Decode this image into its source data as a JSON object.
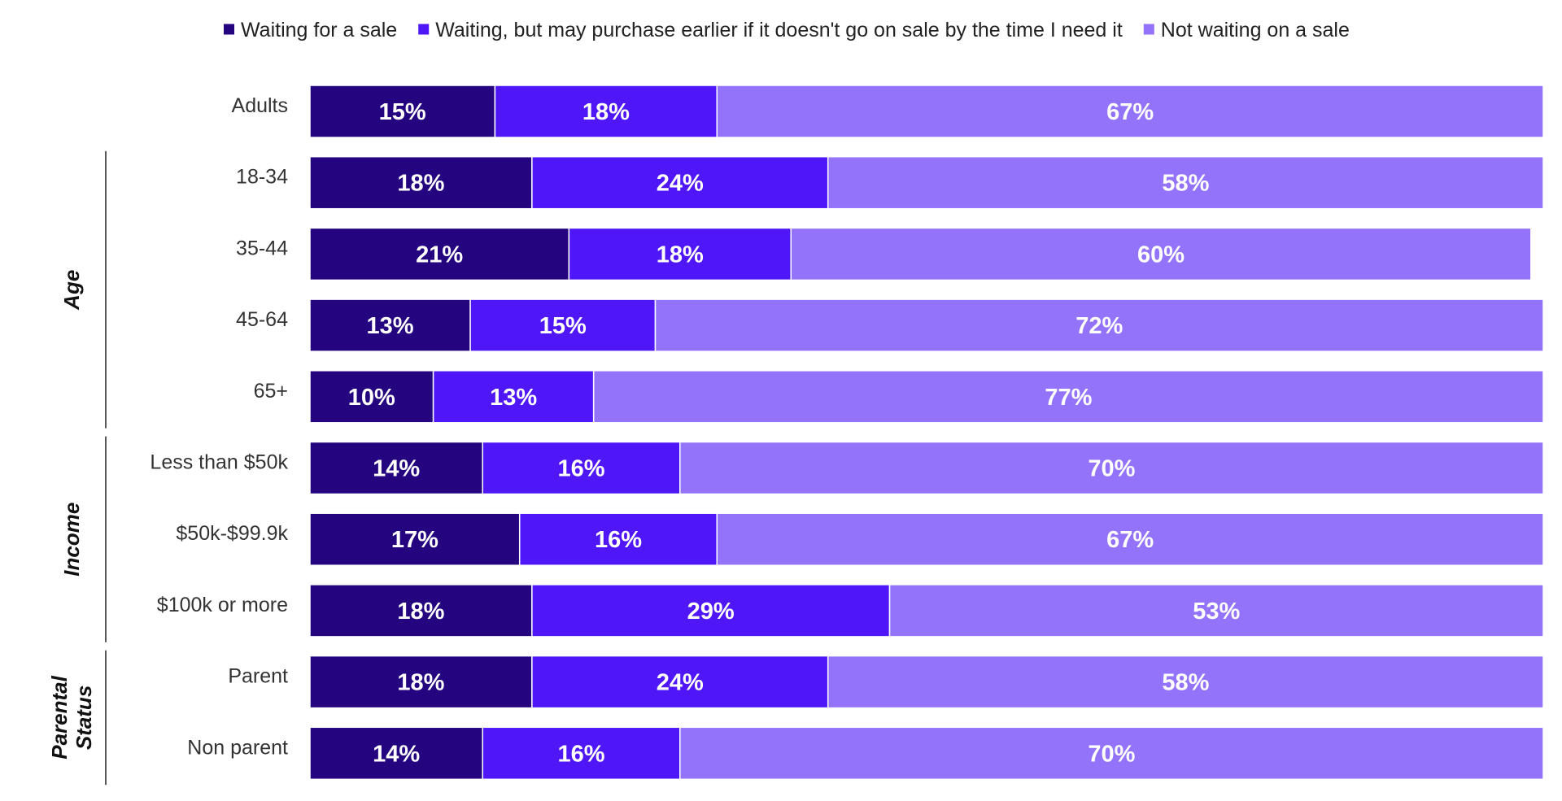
{
  "chart_data": {
    "type": "bar",
    "orientation": "horizontal",
    "stacked": true,
    "legend_position": "top",
    "grid": false,
    "xlim": [
      0,
      100
    ],
    "value_suffix": "%",
    "categories": [
      "Adults",
      "18-34",
      "35-44",
      "45-64",
      "65+",
      "Less than $50k",
      "$50k-$99.9k",
      "$100k or more",
      "Parent",
      "Non parent"
    ],
    "groups": [
      {
        "label": "Age",
        "lines": [
          "Age"
        ],
        "categories": [
          "18-34",
          "35-44",
          "45-64",
          "65+"
        ]
      },
      {
        "label": "Income",
        "lines": [
          "Income"
        ],
        "categories": [
          "Less than $50k",
          "$50k-$99.9k",
          "$100k or more"
        ]
      },
      {
        "label": "Parental Status",
        "lines": [
          "Parental",
          "Status"
        ],
        "categories": [
          "Parent",
          "Non parent"
        ]
      }
    ],
    "series": [
      {
        "name": "Waiting for a sale",
        "color": "#24047f",
        "values": [
          15,
          18,
          21,
          13,
          10,
          14,
          17,
          18,
          18,
          14
        ]
      },
      {
        "name": "Waiting, but may purchase earlier if it doesn't go on sale by the time I need it",
        "color": "#4f17f7",
        "values": [
          18,
          24,
          18,
          15,
          13,
          16,
          16,
          29,
          24,
          16
        ]
      },
      {
        "name": "Not waiting on a sale",
        "color": "#9373fa",
        "values": [
          67,
          58,
          60,
          72,
          77,
          70,
          67,
          53,
          58,
          70
        ]
      }
    ]
  }
}
